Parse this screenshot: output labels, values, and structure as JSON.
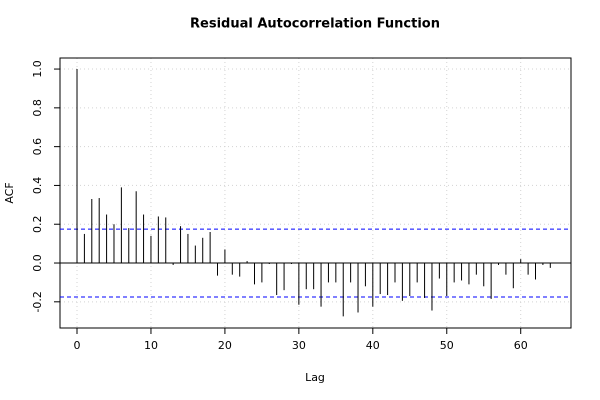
{
  "chart_data": {
    "type": "acf",
    "title": "Residual Autocorrelation Function",
    "x_label": "Lag",
    "y_label": "ACF",
    "x": [
      0,
      1,
      2,
      3,
      4,
      5,
      6,
      7,
      8,
      9,
      10,
      11,
      12,
      13,
      14,
      15,
      16,
      17,
      18,
      19,
      20,
      21,
      22,
      23,
      24,
      25,
      26,
      27,
      28,
      29,
      30,
      31,
      32,
      33,
      34,
      35,
      36,
      37,
      38,
      39,
      40,
      41,
      42,
      43,
      44,
      45,
      46,
      47,
      48,
      49,
      50,
      51,
      52,
      53,
      54,
      55,
      56,
      57,
      58,
      59,
      60,
      61,
      62,
      63,
      64
    ],
    "values": [
      1.0,
      0.15,
      0.33,
      0.335,
      0.25,
      0.2,
      0.39,
      0.18,
      0.37,
      0.25,
      0.14,
      0.24,
      0.235,
      -0.01,
      0.19,
      0.15,
      0.09,
      0.13,
      0.16,
      -0.065,
      0.07,
      -0.06,
      -0.07,
      0.01,
      -0.11,
      -0.1,
      -0.005,
      -0.165,
      -0.14,
      -0.005,
      -0.215,
      -0.135,
      -0.135,
      -0.225,
      -0.1,
      -0.1,
      -0.275,
      -0.1,
      -0.255,
      -0.12,
      -0.225,
      -0.16,
      -0.165,
      -0.1,
      -0.195,
      -0.17,
      -0.1,
      -0.18,
      -0.245,
      -0.08,
      -0.17,
      -0.1,
      -0.09,
      -0.11,
      -0.06,
      -0.12,
      -0.185,
      -0.01,
      -0.06,
      -0.13,
      0.02,
      -0.06,
      -0.085,
      -0.01,
      -0.025
    ],
    "color": "#000000",
    "conf_limits": [
      0.175,
      -0.175
    ],
    "conf_color": "#0000ff",
    "xlim": [
      -2.3,
      66.8
    ],
    "xticks": [
      0,
      10,
      20,
      30,
      40,
      50,
      60
    ],
    "ylim": [
      -0.335,
      1.057
    ],
    "yticks": [
      -0.2,
      {
        "value": 0,
        "label": "0.0"
      },
      0.2,
      0.4,
      0.6,
      0.8,
      {
        "value": 1,
        "label": "1.0"
      }
    ],
    "grid": true
  }
}
